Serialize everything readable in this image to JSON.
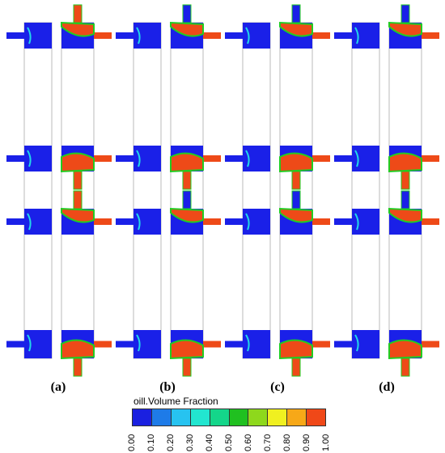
{
  "panels": [
    {
      "label": "(a)"
    },
    {
      "label": "(b)"
    },
    {
      "label": "(c)"
    },
    {
      "label": "(d)"
    }
  ],
  "colorbar": {
    "title": "oill.Volume Fraction",
    "ticks": [
      "0.00",
      "0.10",
      "0.20",
      "0.30",
      "0.40",
      "0.50",
      "0.60",
      "0.70",
      "0.80",
      "0.90",
      "1.00"
    ],
    "colors": [
      "#1a20e0",
      "#1e7be8",
      "#27c3f0",
      "#22e6d0",
      "#14d68a",
      "#20c020",
      "#8ed81c",
      "#f0f020",
      "#f7a818",
      "#f04818"
    ]
  },
  "colors": {
    "water": "#1a20e8",
    "oil": "#ee4a18",
    "interface_green": "#22cc22",
    "interface_cyan": "#22d8e8",
    "interface_yellow": "#e8e820",
    "outline": "#aaaaaa"
  }
}
